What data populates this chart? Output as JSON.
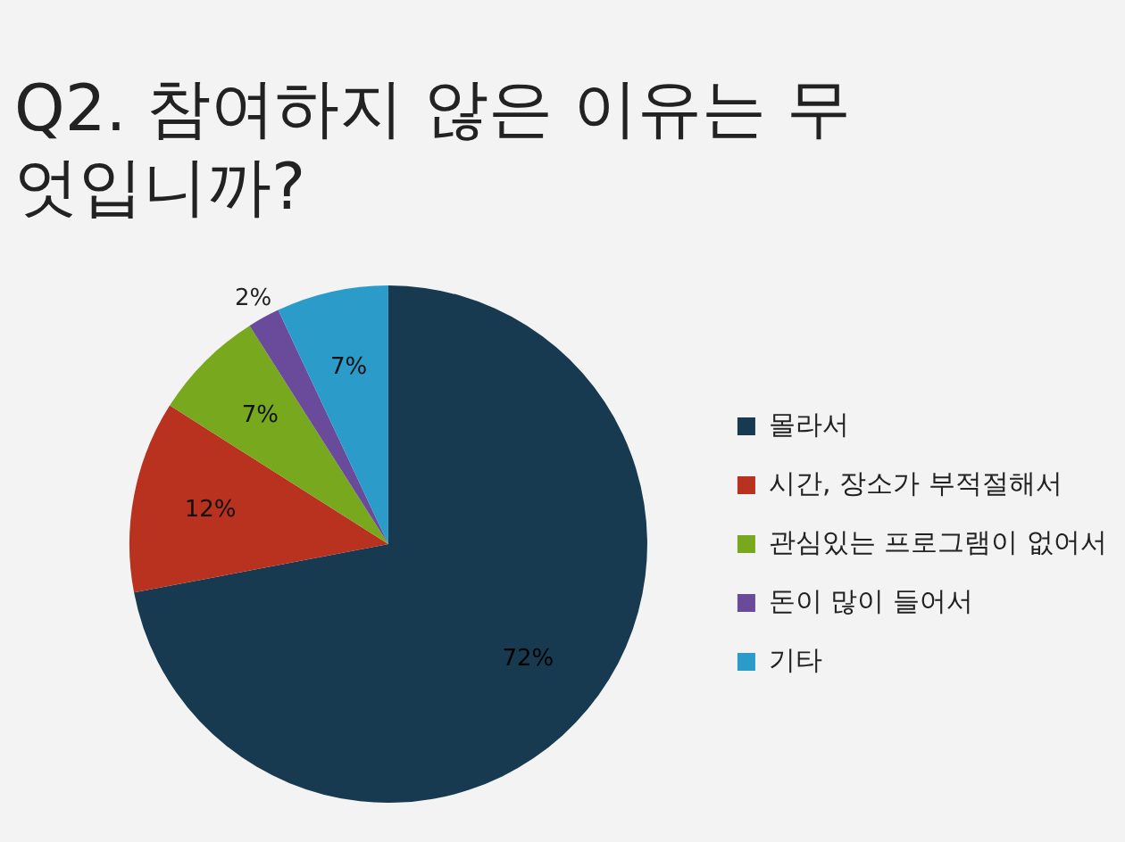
{
  "chart_data": {
    "type": "pie",
    "title": "Q2. 참여하지 않은 이유는 무엇입니까?",
    "categories": [
      "몰라서",
      "시간, 장소가 부적절해서",
      "관심있는 프로그램이 없어서",
      "돈이 많이 들어서",
      "기타"
    ],
    "values": [
      72,
      12,
      7,
      2,
      7
    ],
    "colors": [
      "#173a50",
      "#b8321f",
      "#78a81e",
      "#6a4a9a",
      "#2b9bc9"
    ],
    "value_labels": [
      "72%",
      "12%",
      "7%",
      "2%",
      "7%"
    ],
    "legend": "right"
  }
}
